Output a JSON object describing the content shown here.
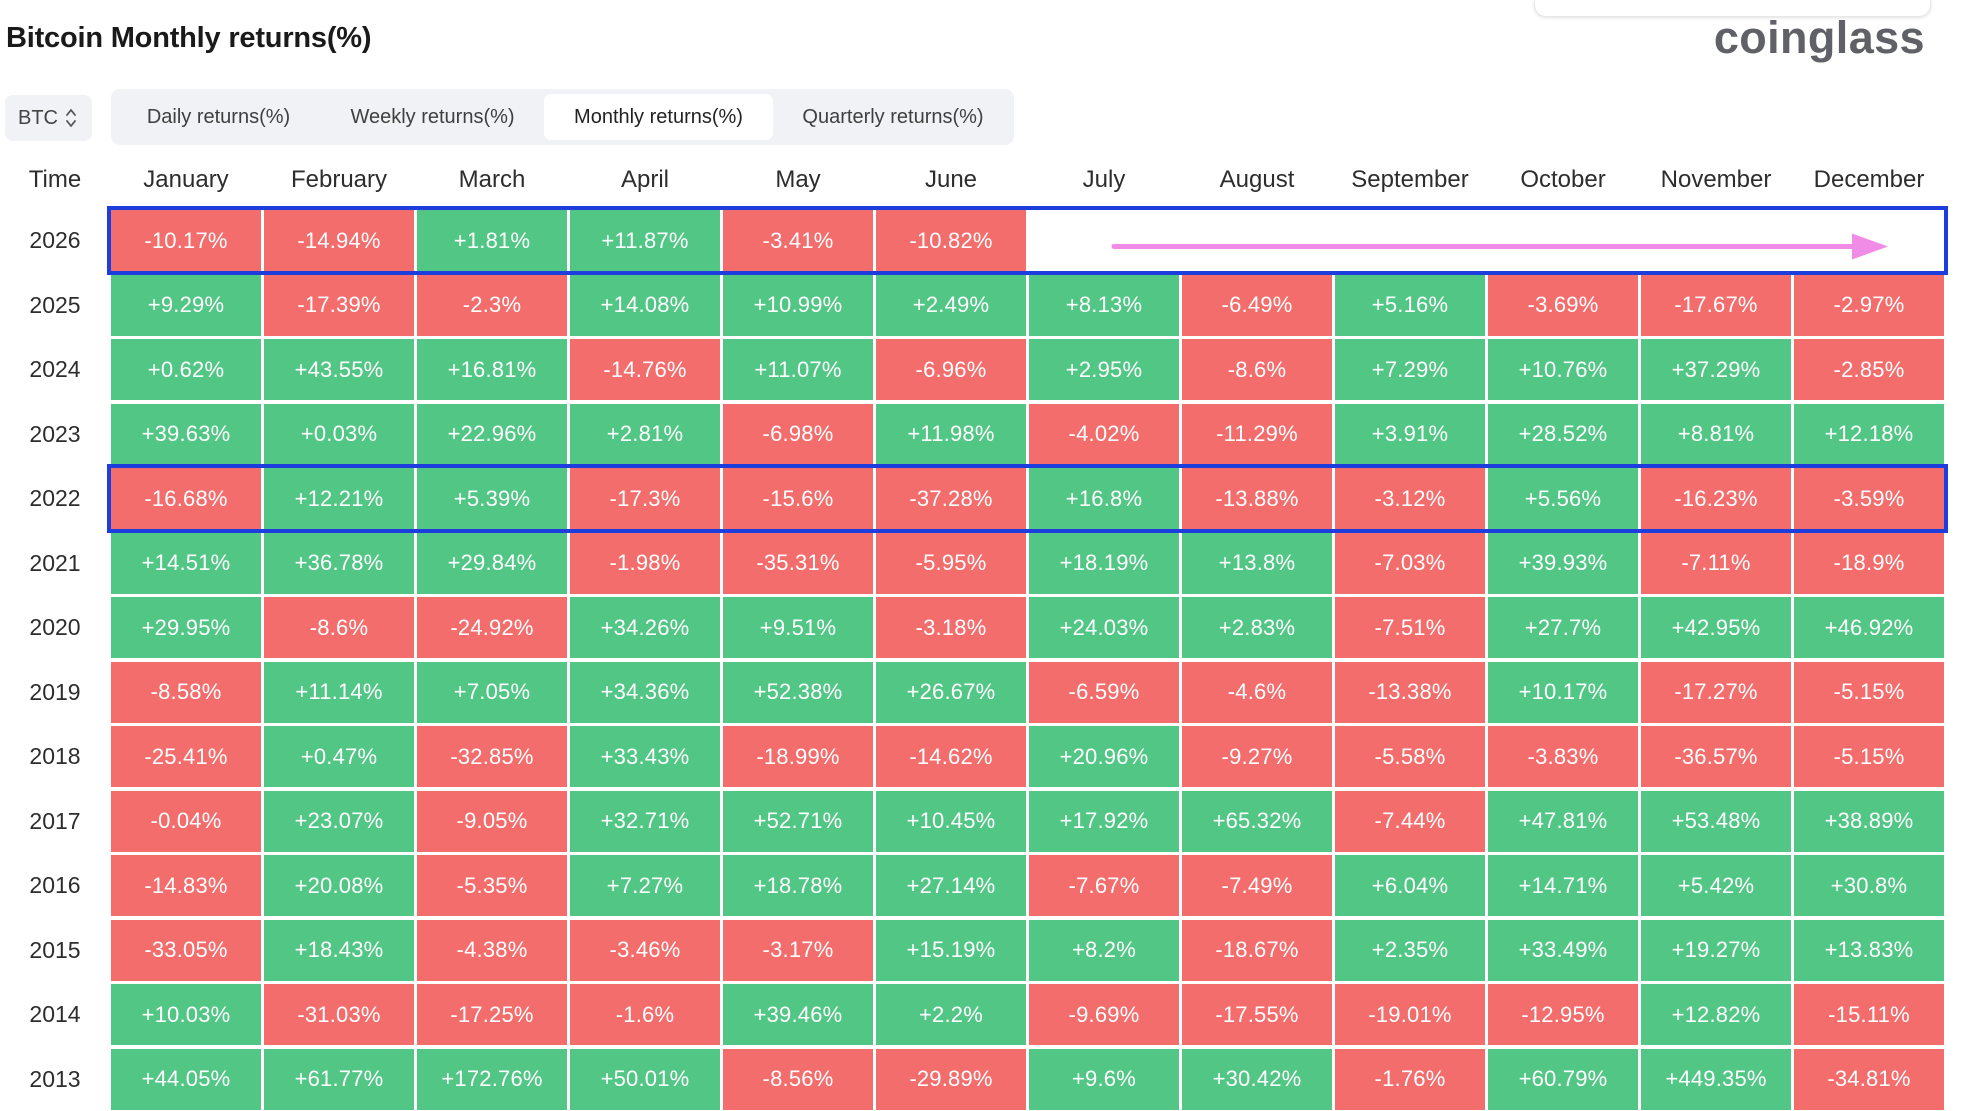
{
  "header": {
    "title": "Bitcoin Monthly returns(%)",
    "brand": "coinglass"
  },
  "coin_select": {
    "value": "BTC"
  },
  "tabs": [
    {
      "label": "Daily returns(%)",
      "active": false
    },
    {
      "label": "Weekly returns(%)",
      "active": false
    },
    {
      "label": "Monthly returns(%)",
      "active": true
    },
    {
      "label": "Quarterly returns(%)",
      "active": false
    }
  ],
  "colors": {
    "positive": "#52c785",
    "negative": "#f46d6d",
    "highlight_border": "#1e3ddd",
    "arrow": "#f08be6"
  },
  "table": {
    "time_header": "Time",
    "months": [
      "January",
      "February",
      "March",
      "April",
      "May",
      "June",
      "July",
      "August",
      "September",
      "October",
      "November",
      "December"
    ],
    "rows": [
      {
        "year": "2026",
        "values": [
          "-10.17%",
          "-14.94%",
          "+1.81%",
          "+11.87%",
          "-3.41%",
          "-10.82%",
          "",
          "",
          "",
          "",
          "",
          ""
        ]
      },
      {
        "year": "2025",
        "values": [
          "+9.29%",
          "-17.39%",
          "-2.3%",
          "+14.08%",
          "+10.99%",
          "+2.49%",
          "+8.13%",
          "-6.49%",
          "+5.16%",
          "-3.69%",
          "-17.67%",
          "-2.97%"
        ]
      },
      {
        "year": "2024",
        "values": [
          "+0.62%",
          "+43.55%",
          "+16.81%",
          "-14.76%",
          "+11.07%",
          "-6.96%",
          "+2.95%",
          "-8.6%",
          "+7.29%",
          "+10.76%",
          "+37.29%",
          "-2.85%"
        ]
      },
      {
        "year": "2023",
        "values": [
          "+39.63%",
          "+0.03%",
          "+22.96%",
          "+2.81%",
          "-6.98%",
          "+11.98%",
          "-4.02%",
          "-11.29%",
          "+3.91%",
          "+28.52%",
          "+8.81%",
          "+12.18%"
        ]
      },
      {
        "year": "2022",
        "values": [
          "-16.68%",
          "+12.21%",
          "+5.39%",
          "-17.3%",
          "-15.6%",
          "-37.28%",
          "+16.8%",
          "-13.88%",
          "-3.12%",
          "+5.56%",
          "-16.23%",
          "-3.59%"
        ]
      },
      {
        "year": "2021",
        "values": [
          "+14.51%",
          "+36.78%",
          "+29.84%",
          "-1.98%",
          "-35.31%",
          "-5.95%",
          "+18.19%",
          "+13.8%",
          "-7.03%",
          "+39.93%",
          "-7.11%",
          "-18.9%"
        ]
      },
      {
        "year": "2020",
        "values": [
          "+29.95%",
          "-8.6%",
          "-24.92%",
          "+34.26%",
          "+9.51%",
          "-3.18%",
          "+24.03%",
          "+2.83%",
          "-7.51%",
          "+27.7%",
          "+42.95%",
          "+46.92%"
        ]
      },
      {
        "year": "2019",
        "values": [
          "-8.58%",
          "+11.14%",
          "+7.05%",
          "+34.36%",
          "+52.38%",
          "+26.67%",
          "-6.59%",
          "-4.6%",
          "-13.38%",
          "+10.17%",
          "-17.27%",
          "-5.15%"
        ]
      },
      {
        "year": "2018",
        "values": [
          "-25.41%",
          "+0.47%",
          "-32.85%",
          "+33.43%",
          "-18.99%",
          "-14.62%",
          "+20.96%",
          "-9.27%",
          "-5.58%",
          "-3.83%",
          "-36.57%",
          "-5.15%"
        ]
      },
      {
        "year": "2017",
        "values": [
          "-0.04%",
          "+23.07%",
          "-9.05%",
          "+32.71%",
          "+52.71%",
          "+10.45%",
          "+17.92%",
          "+65.32%",
          "-7.44%",
          "+47.81%",
          "+53.48%",
          "+38.89%"
        ]
      },
      {
        "year": "2016",
        "values": [
          "-14.83%",
          "+20.08%",
          "-5.35%",
          "+7.27%",
          "+18.78%",
          "+27.14%",
          "-7.67%",
          "-7.49%",
          "+6.04%",
          "+14.71%",
          "+5.42%",
          "+30.8%"
        ]
      },
      {
        "year": "2015",
        "values": [
          "-33.05%",
          "+18.43%",
          "-4.38%",
          "-3.46%",
          "-3.17%",
          "+15.19%",
          "+8.2%",
          "-18.67%",
          "+2.35%",
          "+33.49%",
          "+19.27%",
          "+13.83%"
        ]
      },
      {
        "year": "2014",
        "values": [
          "+10.03%",
          "-31.03%",
          "-17.25%",
          "-1.6%",
          "+39.46%",
          "+2.2%",
          "-9.69%",
          "-17.55%",
          "-19.01%",
          "-12.95%",
          "+12.82%",
          "-15.11%"
        ]
      },
      {
        "year": "2013",
        "values": [
          "+44.05%",
          "+61.77%",
          "+172.76%",
          "+50.01%",
          "-8.56%",
          "-29.89%",
          "+9.6%",
          "+30.42%",
          "-1.76%",
          "+60.79%",
          "+449.35%",
          "-34.81%"
        ]
      }
    ],
    "highlighted_years": [
      "2026",
      "2022"
    ]
  }
}
